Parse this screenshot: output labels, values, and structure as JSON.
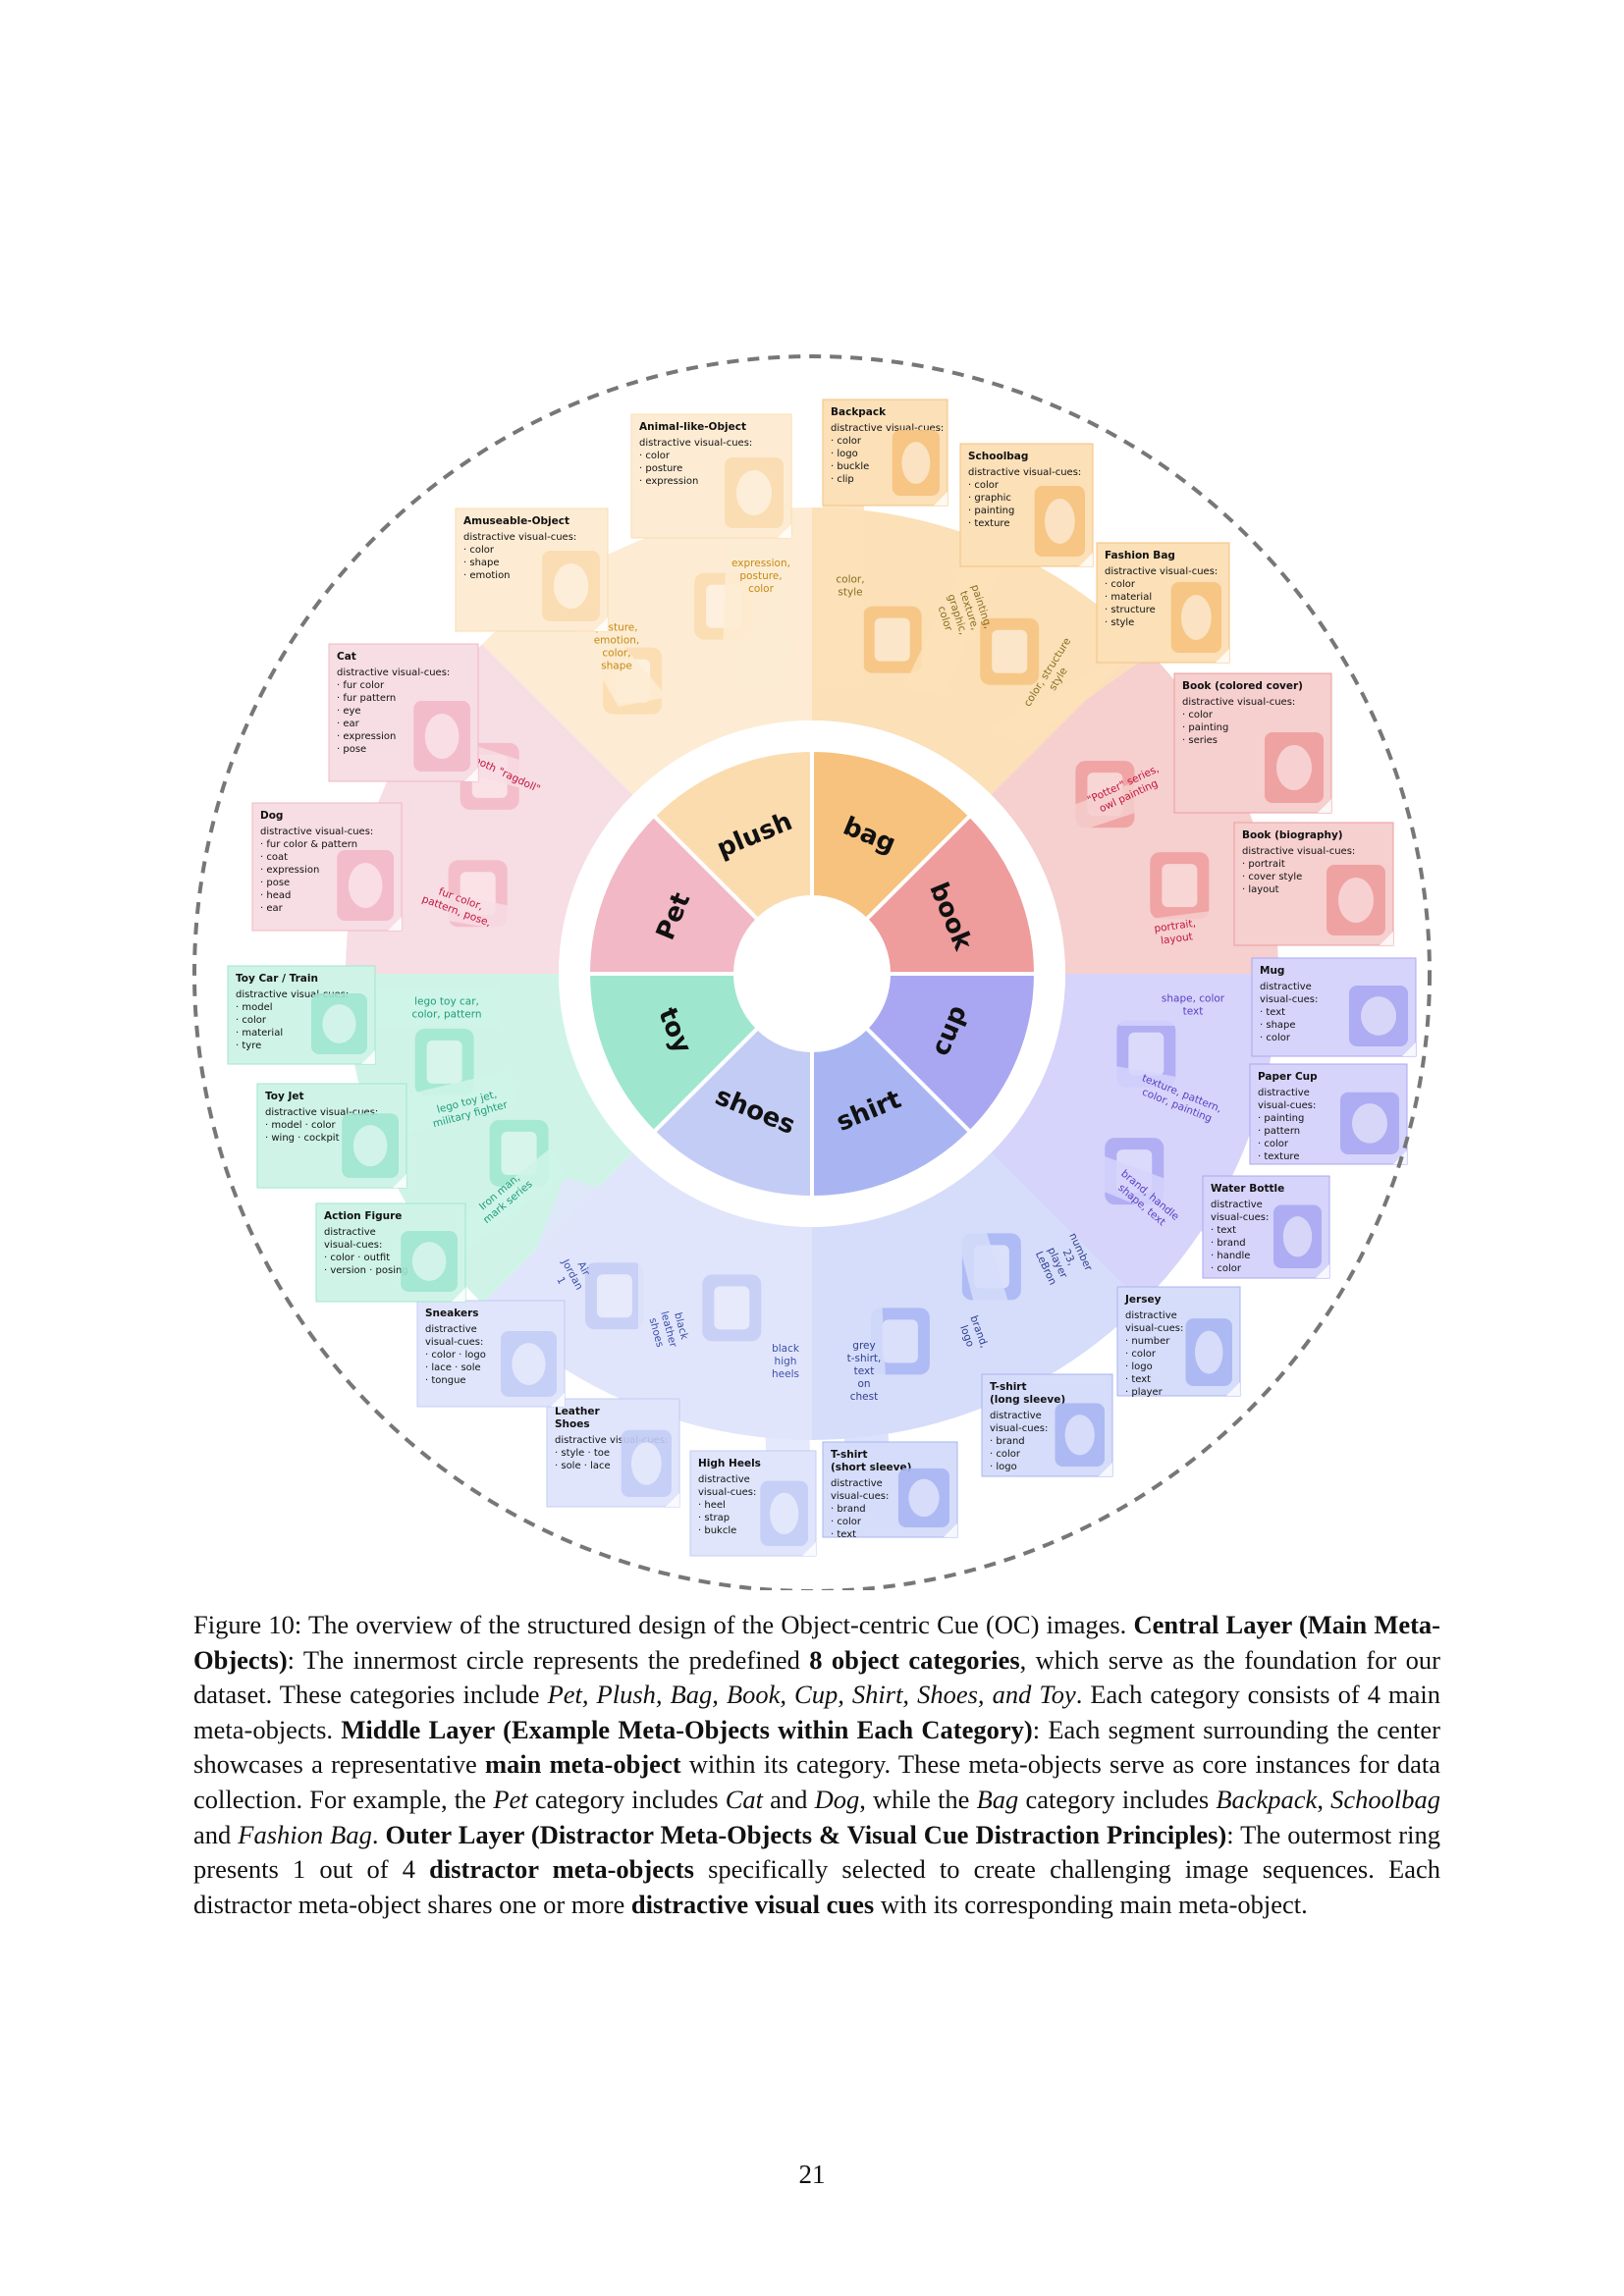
{
  "categories": [
    {
      "key": "pet",
      "label": "Pet"
    },
    {
      "key": "plush",
      "label": "plush"
    },
    {
      "key": "bag",
      "label": "bag"
    },
    {
      "key": "book",
      "label": "book"
    },
    {
      "key": "cup",
      "label": "cup"
    },
    {
      "key": "shirt",
      "label": "shirt"
    },
    {
      "key": "shoes",
      "label": "shoes"
    },
    {
      "key": "toy",
      "label": "toy"
    }
  ],
  "colors": {
    "pet": "#f2b8c6",
    "plush": "#fbdcaf",
    "bag": "#f6c27e",
    "book": "#ee9c9c",
    "cup": "#aaa7f2",
    "shirt": "#a8b5f2",
    "shoes": "#c3ccf5",
    "toy": "#9fe6cf",
    "pet_mid": "#f7dde4",
    "plush_mid": "#fdecd3",
    "bag_mid": "#fbe0b8",
    "book_mid": "#f6cfcf",
    "cup_mid": "#d6d4fa",
    "shirt_mid": "#d6ddfa",
    "shoes_mid": "#e0e5fb",
    "toy_mid": "#cff4e7",
    "dashed_ring": "#777777"
  },
  "cards": [
    {
      "id": "animal-like-object",
      "title": "Animal-like-Object",
      "lines": [
        "distractive visual-cues:",
        "· color",
        "· posture",
        "· expression"
      ],
      "cue": [
        "expression,",
        "posture,",
        "color"
      ],
      "icon": "plush-cat-image",
      "category": "plush"
    },
    {
      "id": "amuseable-object",
      "title": "Amuseable-Object",
      "lines": [
        "distractive visual-cues:",
        "· color",
        "· shape",
        "· emotion"
      ],
      "cue": [
        "posture,",
        "emotion,",
        "color,",
        "shape"
      ],
      "icon": "plush-hotdog-image",
      "category": "plush"
    },
    {
      "id": "backpack",
      "title": "Backpack",
      "lines": [
        "distractive visual-cues:",
        "· color",
        "· logo",
        "· buckle",
        "· clip"
      ],
      "cue": [
        "color,",
        "style"
      ],
      "icon": "backpack-image",
      "category": "bag"
    },
    {
      "id": "schoolbag",
      "title": "Schoolbag",
      "lines": [
        "distractive visual-cues:",
        "· color",
        "· graphic",
        "· painting",
        "· texture"
      ],
      "cue": [
        "painting,",
        "texture,",
        "graphic,",
        "color"
      ],
      "icon": "schoolbag-image",
      "category": "bag"
    },
    {
      "id": "fashion-bag",
      "title": "Fashion Bag",
      "lines": [
        "distractive visual-cues:",
        "· color",
        "· material",
        "· structure",
        "· style"
      ],
      "cue": [
        "color, structure",
        "style"
      ],
      "icon": "fashion-bag-image",
      "category": "bag"
    },
    {
      "id": "book-colored-cover",
      "title": "Book (colored cover)",
      "lines": [
        "distractive visual-cues:",
        "· color",
        "· painting",
        "· series"
      ],
      "cue": [
        "\"Potter\" series,",
        "owl painting"
      ],
      "icon": "book-cover-image",
      "category": "book"
    },
    {
      "id": "book-biography",
      "title": "Book (biography)",
      "lines": [
        "distractive visual-cues:",
        "· portrait",
        "· cover style",
        "· layout"
      ],
      "cue": [
        "portrait,",
        "layout"
      ],
      "icon": "book-biography-image",
      "category": "book"
    },
    {
      "id": "cat",
      "title": "Cat",
      "lines": [
        "distractive visual-cues:",
        "· fur color",
        "· fur pattern",
        "· eye",
        "· ear",
        "· expression",
        "· pose"
      ],
      "cue": [
        "both \"ragdoll\""
      ],
      "icon": "cat-image",
      "category": "pet"
    },
    {
      "id": "dog",
      "title": "Dog",
      "lines": [
        "distractive visual-cues:",
        "· fur color & pattern",
        "· coat",
        "· expression",
        "· pose",
        "· head",
        "· ear"
      ],
      "cue": [
        "fur color,",
        "pattern, pose,"
      ],
      "icon": "dog-image",
      "category": "pet"
    },
    {
      "id": "mug",
      "title": "Mug",
      "lines": [
        "distractive",
        "visual-cues:",
        "· text",
        "· shape",
        "· color"
      ],
      "cue": [
        "shape, color",
        "text"
      ],
      "icon": "mug-image",
      "category": "cup"
    },
    {
      "id": "paper-cup",
      "title": "Paper Cup",
      "lines": [
        "distractive",
        "visual-cues:",
        "· painting",
        "· pattern",
        "· color",
        "· texture"
      ],
      "cue": [
        "texture, pattern,",
        "color, painting"
      ],
      "icon": "paper-cup-image",
      "category": "cup"
    },
    {
      "id": "water-bottle",
      "title": "Water Bottle",
      "lines": [
        "distractive",
        "visual-cues:",
        "· text",
        "· brand",
        "· handle",
        "· color"
      ],
      "cue": [
        "brand, handle",
        "shape, text"
      ],
      "icon": "water-bottle-image",
      "category": "cup"
    },
    {
      "id": "jersey",
      "title": "Jersey",
      "lines": [
        "distractive",
        "visual-cues:",
        "· number",
        "· color",
        "· logo",
        "· text",
        "· player"
      ],
      "cue": [
        "number",
        "23,",
        "player",
        "LeBron"
      ],
      "icon": "jersey-image",
      "category": "shirt"
    },
    {
      "id": "t-shirt-long",
      "title": "T-shirt",
      "title2": "(long sleeve)",
      "lines": [
        "distractive",
        "visual-cues:",
        "· brand",
        "· color",
        "· logo"
      ],
      "cue": [
        "brand,",
        "logo"
      ],
      "icon": "long-sleeve-image",
      "category": "shirt"
    },
    {
      "id": "t-shirt-short",
      "title": "T-shirt",
      "title2": "(short sleeve)",
      "lines": [
        "distractive",
        "visual-cues:",
        "· brand",
        "· color",
        "· text"
      ],
      "cue": [
        "grey",
        "t-shirt,",
        "text",
        "on",
        "chest"
      ],
      "icon": "short-sleeve-image",
      "category": "shirt"
    },
    {
      "id": "high-heels",
      "title": "High Heels",
      "lines": [
        "distractive",
        "visual-cues:",
        "· heel",
        "· strap",
        "· bukcle"
      ],
      "cue": [
        "black",
        "high",
        "heels"
      ],
      "icon": "high-heels-image",
      "category": "shoes"
    },
    {
      "id": "leather-shoes",
      "title": "Leather",
      "title2": "Shoes",
      "lines": [
        "distractive visual-cues:",
        "· style    · toe",
        "· sole     · lace"
      ],
      "cue": [
        "black",
        "leather",
        "shoes"
      ],
      "icon": "leather-shoes-image",
      "category": "shoes"
    },
    {
      "id": "sneakers",
      "title": "Sneakers",
      "lines": [
        "distractive",
        "visual-cues:",
        "· color    · logo",
        "· lace     · sole",
        "· tongue"
      ],
      "cue": [
        "Air",
        "Jordan",
        "1"
      ],
      "icon": "sneaker-image",
      "category": "shoes"
    },
    {
      "id": "toy-car",
      "title": "Toy Car / Train",
      "lines": [
        "distractive visual-cues:",
        "· model",
        "· color",
        "· material",
        "· tyre"
      ],
      "cue": [
        "lego toy car,",
        "color, pattern"
      ],
      "icon": "toy-car-image",
      "category": "toy"
    },
    {
      "id": "toy-jet",
      "title": "Toy Jet",
      "lines": [
        "distractive visual-cues:",
        "· model · color",
        "· wing · cockpit"
      ],
      "cue": [
        "lego toy jet,",
        "military fighter"
      ],
      "icon": "toy-jet-image",
      "category": "toy"
    },
    {
      "id": "action-figure",
      "title": "Action Figure",
      "lines": [
        "distractive",
        "visual-cues:",
        "· color · outfit",
        "· version · posing"
      ],
      "cue": [
        "Iron man,",
        "mark series"
      ],
      "icon": "action-figure-image",
      "category": "toy"
    }
  ],
  "caption": {
    "p1": "Figure 10: The overview of the structured design of the Object-centric Cue (OC) images. ",
    "b1": "Central Layer (Main Meta-Objects)",
    "p2": ": The innermost circle represents the predefined ",
    "b2": "8 object categories",
    "p3": ", which serve as the foundation for our dataset. These categories include ",
    "i1": "Pet, Plush, Bag, Book, Cup, Shirt, Shoes, and Toy",
    "p4": ". Each category consists of 4 main meta-objects. ",
    "b3": "Middle Layer (Example Meta-Objects within Each Category)",
    "p5": ": Each segment surrounding the center showcases a representative ",
    "b4": "main meta-object",
    "p6": " within its category. These meta-objects serve as core instances for data collection. For example, the ",
    "i2": "Pet",
    "p7": " category includes ",
    "i3": "Cat",
    "p8": " and ",
    "i4": "Dog",
    "p9": ", while the ",
    "i5": "Bag",
    "p10": " category includes ",
    "i6": "Backpack",
    "p11": ", ",
    "i7": "Schoolbag",
    "p12": " and ",
    "i8": "Fashion Bag",
    "p13": ". ",
    "b5": "Outer Layer (Distractor Meta-Objects & Visual Cue Distraction Principles)",
    "p14": ": The outermost ring presents 1 out of 4 ",
    "b6": "distractor meta-objects",
    "p15": " specifically selected to create challenging image sequences. Each distractor meta-object shares one or more ",
    "b7": "distractive visual cues",
    "p16": " with its corresponding main meta-object."
  },
  "page_number": "21"
}
